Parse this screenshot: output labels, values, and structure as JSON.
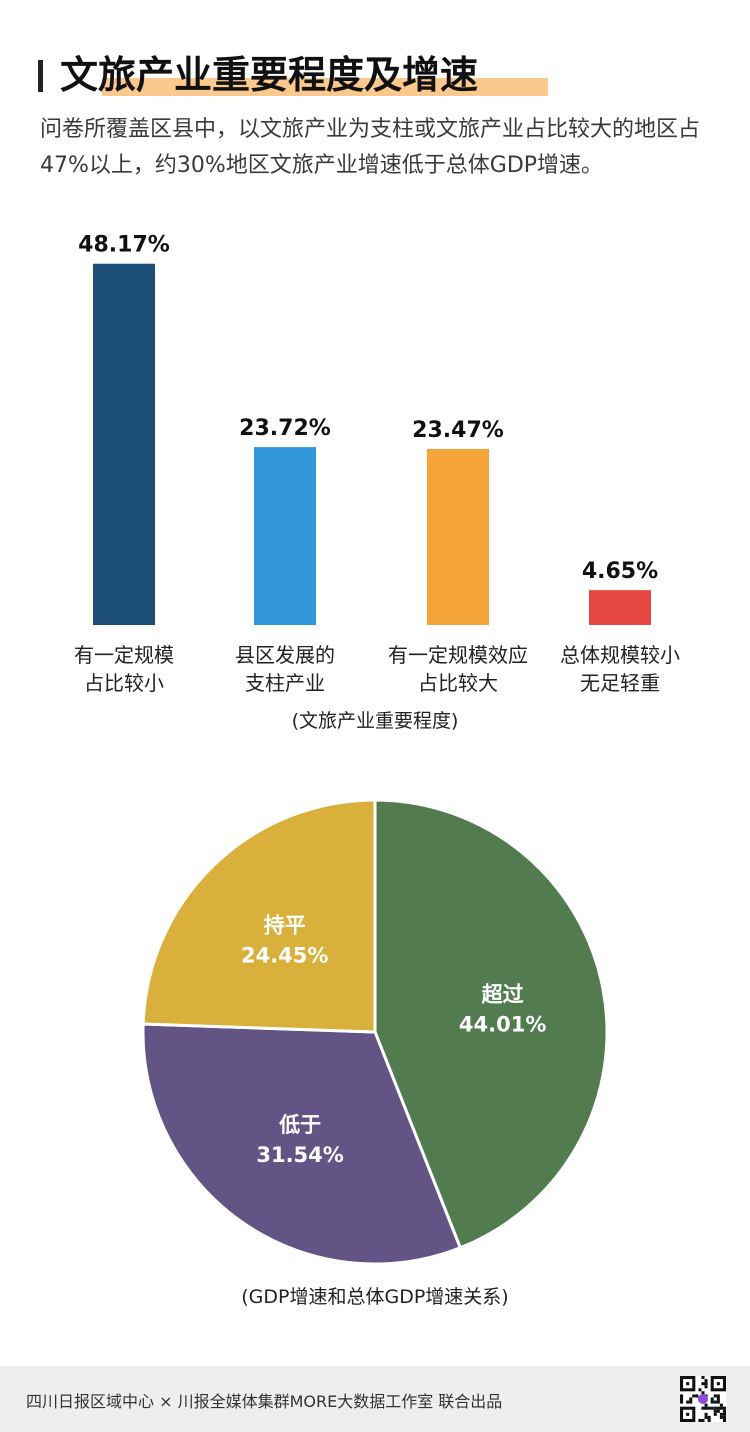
{
  "header": {
    "title": "文旅产业重要程度及增速",
    "subtitle": "问卷所覆盖区县中，以文旅产业为支柱或文旅产业占比较大的地区占47%以上，约30%地区文旅产业增速低于总体GDP增速。"
  },
  "colors": {
    "title_highlight": "#fbc88d",
    "bar_colors": [
      "#1d4e78",
      "#3398db",
      "#f5a43a",
      "#e54842"
    ],
    "pie_colors": [
      "#537b50",
      "#635486",
      "#d8b03b"
    ]
  },
  "chart_data": [
    {
      "type": "bar",
      "categories": [
        [
          "有一定规模",
          "占比较小"
        ],
        [
          "县区发展的",
          "支柱产业"
        ],
        [
          "有一定规模效应",
          "占比较大"
        ],
        [
          "总体规模较小",
          "无足轻重"
        ]
      ],
      "values": [
        48.17,
        23.72,
        23.47,
        4.65
      ],
      "value_labels": [
        "48.17%",
        "23.72%",
        "23.47%",
        "4.65%"
      ],
      "xlabel": "(文旅产业重要程度)",
      "ylim": [
        0,
        50
      ],
      "grid": false
    },
    {
      "type": "pie",
      "labels": [
        "超过",
        "低于",
        "持平"
      ],
      "values": [
        44.01,
        31.54,
        24.45
      ],
      "value_labels": [
        "44.01%",
        "31.54%",
        "24.45%"
      ],
      "xlabel": "(GDP增速和总体GDP增速关系)"
    }
  ],
  "footer": {
    "credit": "四川日报区域中心 × 川报全媒体集群MORE大数据工作室   联合出品",
    "qr_icon": "qr-code-icon"
  }
}
